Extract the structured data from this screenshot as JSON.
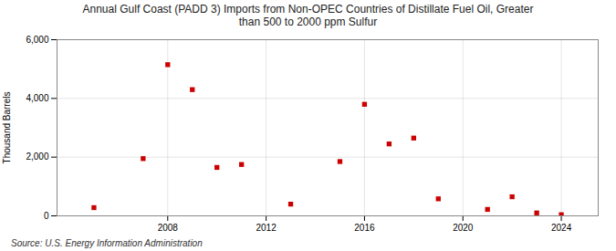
{
  "chart_data": {
    "type": "scatter",
    "title": "Annual Gulf Coast (PADD 3) Imports from Non-OPEC Countries of Distillate Fuel Oil, Greater\nthan 500 to 2000 ppm Sulfur",
    "ylabel": "Thousand Barrels",
    "caption": "Source: U.S. Energy Information Administration",
    "x": [
      2005,
      2007,
      2008,
      2009,
      2010,
      2011,
      2013,
      2015,
      2016,
      2017,
      2018,
      2019,
      2021,
      2022,
      2023,
      2024
    ],
    "values": [
      280,
      1950,
      5150,
      4300,
      1650,
      1750,
      400,
      1850,
      3800,
      2450,
      2650,
      580,
      220,
      650,
      100,
      40
    ],
    "color": "#cc0000",
    "marker": "square",
    "xlim": [
      2003.5,
      2025.5
    ],
    "xticks": [
      2008,
      2012,
      2016,
      2020,
      2024
    ],
    "ylim": [
      0,
      6000
    ],
    "yticks": [
      0,
      {
        "value": 2000,
        "label": "2,000"
      },
      {
        "value": 4000,
        "label": "4,000"
      },
      {
        "value": 6000,
        "label": "6,000"
      }
    ],
    "grid": true
  }
}
